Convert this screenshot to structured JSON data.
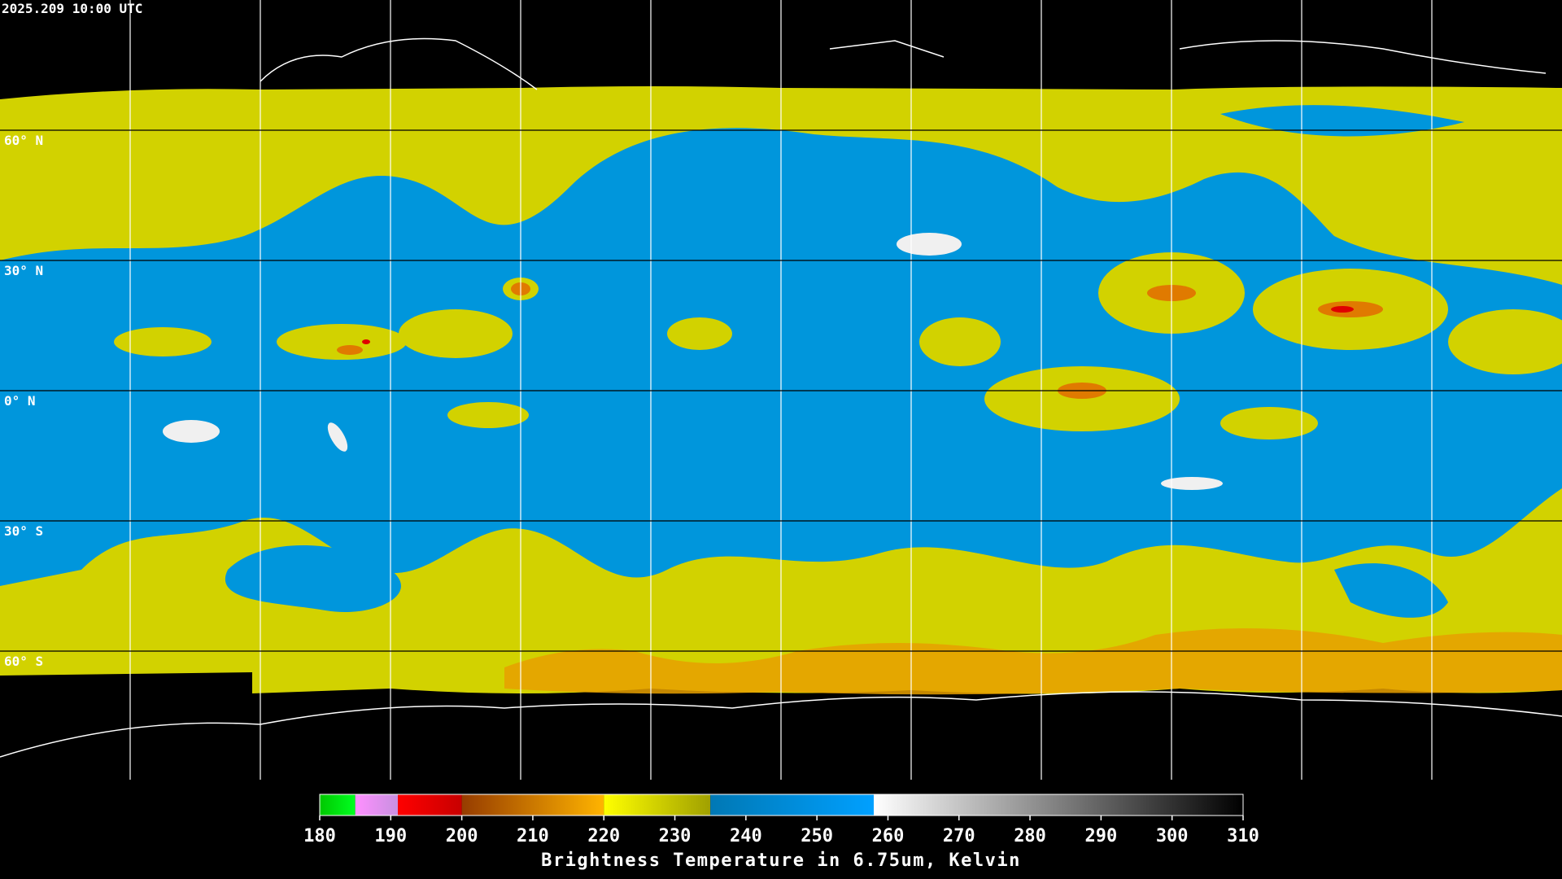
{
  "header": {
    "timestamp": "2025.209 10:00 UTC"
  },
  "map": {
    "lat_labels": [
      "60° N",
      "30° N",
      "0° N",
      "30° S",
      "60° S"
    ]
  },
  "colorbar": {
    "title": "Brightness Temperature in 6.75um, Kelvin",
    "range": [
      180,
      310
    ],
    "ticks": [
      180,
      190,
      200,
      210,
      220,
      230,
      240,
      250,
      260,
      270,
      280,
      290,
      300,
      310
    ],
    "segments": [
      {
        "from": 180,
        "to": 185,
        "colors": [
          "#00c800",
          "#00ff20"
        ]
      },
      {
        "from": 185,
        "to": 191,
        "colors": [
          "#ff90ff",
          "#c890e0"
        ]
      },
      {
        "from": 191,
        "to": 200,
        "colors": [
          "#ff0000",
          "#c80000"
        ]
      },
      {
        "from": 200,
        "to": 220,
        "colors": [
          "#963c00",
          "#ffb400"
        ]
      },
      {
        "from": 220,
        "to": 235,
        "colors": [
          "#ffff00",
          "#a0a000"
        ]
      },
      {
        "from": 235,
        "to": 258,
        "colors": [
          "#0078b4",
          "#00a0ff"
        ]
      },
      {
        "from": 258,
        "to": 310,
        "colors": [
          "#ffffff",
          "#000000"
        ]
      }
    ]
  }
}
